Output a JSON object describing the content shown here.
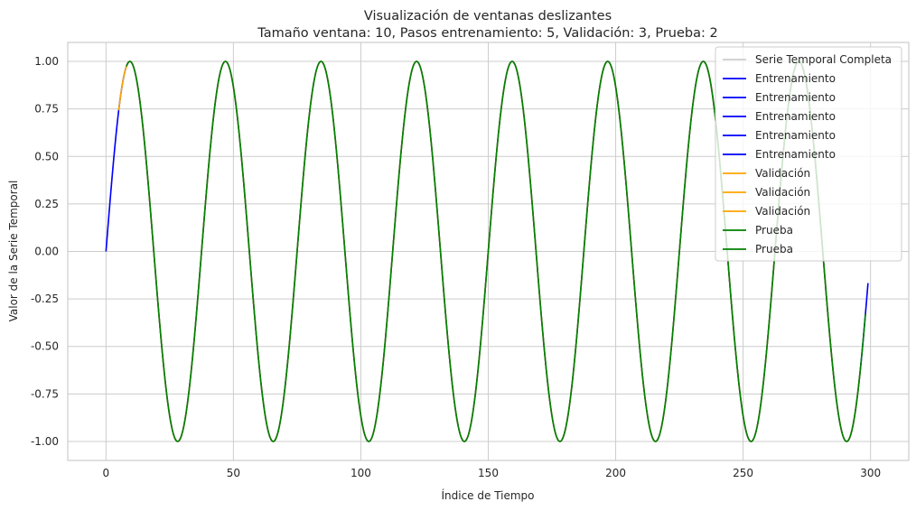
{
  "chart_data": {
    "type": "line",
    "title": "Visualización de ventanas deslizantes",
    "subtitle": "Tamaño ventana: 10, Pasos entrenamiento: 5, Validación: 3, Prueba: 2",
    "xlabel": "Índice de Tiempo",
    "ylabel": "Valor de la Serie Temporal",
    "xlim": [
      -15,
      315
    ],
    "ylim": [
      -1.1,
      1.1
    ],
    "xticks": [
      0,
      50,
      100,
      150,
      200,
      250,
      300
    ],
    "yticks": [
      -1.0,
      -0.75,
      -0.5,
      -0.25,
      0.0,
      0.25,
      0.5,
      0.75,
      1.0
    ],
    "grid": true,
    "legend_position": "top-right",
    "series_function": "sin(2*pi*t/37.5), t = 0..299",
    "full_series": {
      "name": "Serie Temporal Completa",
      "color": "#cccccc",
      "x_start": 0,
      "x_end": 299
    },
    "window_size": 10,
    "cycle": 10,
    "segments": [
      {
        "name": "Entrenamiento",
        "color": "#0000ff",
        "offsets": [
          0,
          1,
          2,
          3,
          4
        ]
      },
      {
        "name": "Validación",
        "color": "#ffa500",
        "offsets": [
          5,
          6,
          7
        ]
      },
      {
        "name": "Prueba",
        "color": "#008000",
        "offsets": [
          8,
          9
        ]
      }
    ],
    "legend": [
      {
        "label": "Serie Temporal Completa",
        "color": "#cccccc"
      },
      {
        "label": "Entrenamiento",
        "color": "#0000ff"
      },
      {
        "label": "Entrenamiento",
        "color": "#0000ff"
      },
      {
        "label": "Entrenamiento",
        "color": "#0000ff"
      },
      {
        "label": "Entrenamiento",
        "color": "#0000ff"
      },
      {
        "label": "Entrenamiento",
        "color": "#0000ff"
      },
      {
        "label": "Validación",
        "color": "#ffa500"
      },
      {
        "label": "Validación",
        "color": "#ffa500"
      },
      {
        "label": "Validación",
        "color": "#ffa500"
      },
      {
        "label": "Prueba",
        "color": "#008000"
      },
      {
        "label": "Prueba",
        "color": "#008000"
      }
    ]
  }
}
